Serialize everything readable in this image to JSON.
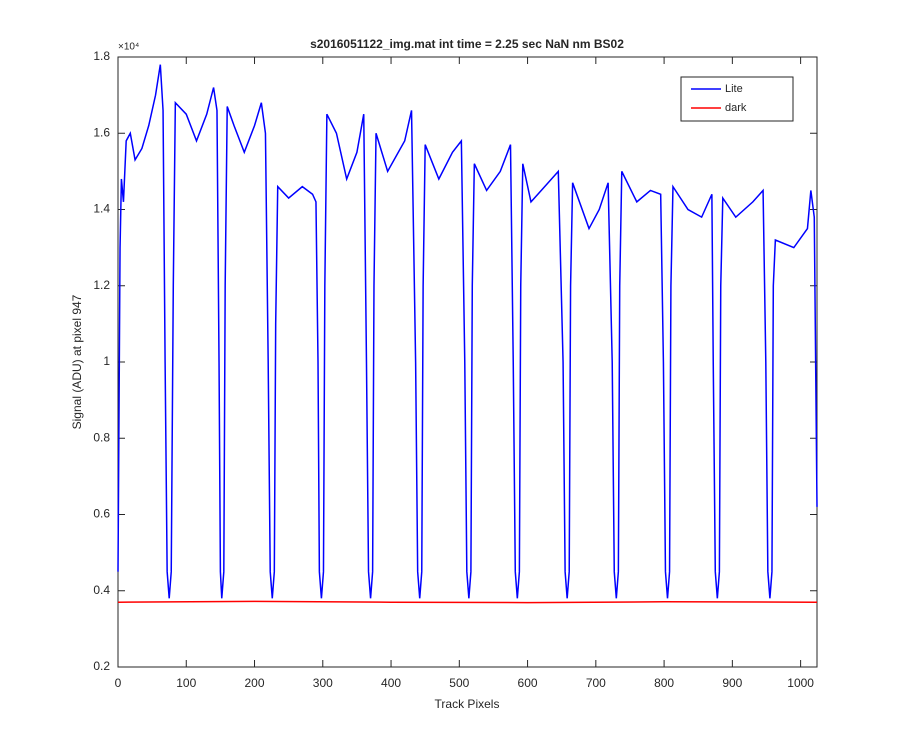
{
  "chart_data": {
    "type": "line",
    "title": "s2016051122_img.mat int time = 2.25 sec  NaN nm BS02",
    "x_label": "Track Pixels",
    "y_label": "Signal (ADU) at pixel 947",
    "y_exponent_label": "×10⁴",
    "xlim": [
      0,
      1024
    ],
    "xticks": [
      0,
      100,
      200,
      300,
      400,
      500,
      600,
      700,
      800,
      900,
      1000
    ],
    "ylim": [
      0.2,
      1.8
    ],
    "yticks": [
      0.2,
      0.4,
      0.6,
      0.8,
      1,
      1.2,
      1.4,
      1.6,
      1.8
    ],
    "legend": "top-right",
    "grid": false,
    "series": [
      {
        "name": "Lite",
        "color": "#0000ff",
        "x": [
          0,
          3,
          5,
          8,
          12,
          18,
          25,
          35,
          45,
          55,
          62,
          66,
          69,
          72,
          75,
          78,
          81,
          84,
          100,
          115,
          130,
          140,
          145,
          148,
          150,
          152,
          155,
          157,
          160,
          170,
          185,
          200,
          210,
          216,
          220,
          223,
          226,
          229,
          231,
          234,
          250,
          270,
          285,
          290,
          293,
          295,
          298,
          301,
          303,
          306,
          320,
          335,
          350,
          360,
          364,
          367,
          370,
          373,
          375,
          378,
          395,
          420,
          430,
          436,
          439,
          442,
          445,
          447,
          450,
          470,
          490,
          503,
          508,
          511,
          514,
          517,
          519,
          522,
          540,
          560,
          575,
          579,
          582,
          585,
          588,
          590,
          593,
          605,
          620,
          645,
          652,
          655,
          658,
          661,
          663,
          666,
          690,
          705,
          718,
          724,
          727,
          730,
          733,
          735,
          738,
          760,
          780,
          795,
          799,
          802,
          805,
          808,
          810,
          813,
          835,
          855,
          870,
          872,
          875,
          878,
          881,
          883,
          886,
          905,
          930,
          945,
          949,
          952,
          955,
          958,
          960,
          963,
          990,
          1010,
          1015,
          1020,
          1024
        ],
        "values": [
          0.45,
          1.3,
          1.48,
          1.42,
          1.58,
          1.6,
          1.53,
          1.56,
          1.62,
          1.7,
          1.78,
          1.66,
          1.0,
          0.45,
          0.38,
          0.45,
          1.2,
          1.68,
          1.65,
          1.58,
          1.65,
          1.72,
          1.66,
          1.0,
          0.45,
          0.38,
          0.45,
          1.2,
          1.67,
          1.62,
          1.55,
          1.62,
          1.68,
          1.6,
          1.0,
          0.45,
          0.38,
          0.45,
          1.1,
          1.46,
          1.43,
          1.46,
          1.44,
          1.42,
          1.0,
          0.45,
          0.38,
          0.45,
          1.2,
          1.65,
          1.6,
          1.48,
          1.55,
          1.65,
          1.0,
          0.45,
          0.38,
          0.45,
          1.2,
          1.6,
          1.5,
          1.58,
          1.66,
          1.0,
          0.45,
          0.38,
          0.45,
          1.2,
          1.57,
          1.48,
          1.55,
          1.58,
          1.0,
          0.45,
          0.38,
          0.45,
          1.2,
          1.52,
          1.45,
          1.5,
          1.57,
          1.0,
          0.45,
          0.38,
          0.45,
          1.2,
          1.52,
          1.42,
          1.45,
          1.5,
          1.0,
          0.45,
          0.38,
          0.45,
          1.2,
          1.47,
          1.35,
          1.4,
          1.47,
          1.0,
          0.45,
          0.38,
          0.45,
          1.2,
          1.5,
          1.42,
          1.45,
          1.44,
          1.0,
          0.45,
          0.38,
          0.45,
          1.2,
          1.46,
          1.4,
          1.38,
          1.44,
          1.0,
          0.45,
          0.38,
          0.45,
          1.2,
          1.43,
          1.38,
          1.42,
          1.45,
          1.0,
          0.45,
          0.38,
          0.45,
          1.2,
          1.32,
          1.3,
          1.35,
          1.45,
          1.38,
          0.62
        ]
      },
      {
        "name": "dark",
        "color": "#ff0000",
        "x": [
          0,
          200,
          400,
          600,
          800,
          1024
        ],
        "values": [
          0.37,
          0.372,
          0.37,
          0.369,
          0.371,
          0.37
        ]
      }
    ]
  }
}
